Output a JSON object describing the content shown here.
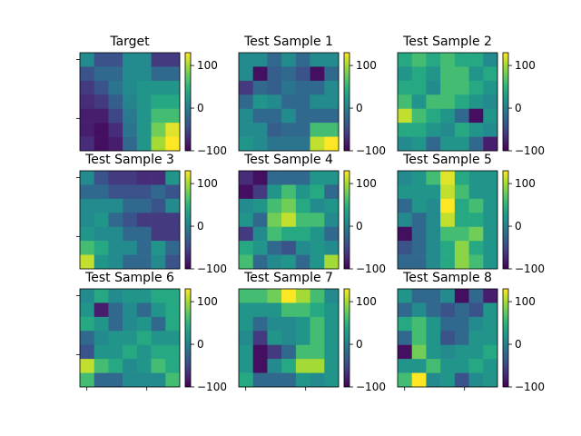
{
  "chart_data": {
    "type": "heatmap",
    "colormap": "viridis",
    "grid": false,
    "colorbar_ticks": [
      "100",
      "0",
      "−100"
    ],
    "colorbar_tick_values": [
      100,
      0,
      -100
    ],
    "vmin": -100,
    "vmax": 130,
    "panels": [
      {
        "title": "Target",
        "values": [
          [
            10,
            -40,
            -40,
            10,
            10,
            -60,
            -60
          ],
          [
            -40,
            -20,
            -20,
            10,
            10,
            -20,
            -20
          ],
          [
            -60,
            -40,
            -10,
            10,
            20,
            20,
            20
          ],
          [
            -70,
            -60,
            -30,
            5,
            20,
            40,
            40
          ],
          [
            -80,
            -80,
            -50,
            -5,
            20,
            60,
            60
          ],
          [
            -80,
            -90,
            -70,
            -10,
            20,
            80,
            120
          ],
          [
            -70,
            -90,
            -80,
            -20,
            20,
            100,
            130
          ]
        ]
      },
      {
        "title": "Test Sample 1",
        "values": [
          [
            10,
            10,
            -20,
            10,
            -20,
            10,
            10
          ],
          [
            10,
            -90,
            -30,
            -20,
            -40,
            -90,
            -20
          ],
          [
            -60,
            -20,
            -30,
            -10,
            -20,
            -20,
            10
          ],
          [
            -20,
            20,
            10,
            -20,
            -20,
            10,
            10
          ],
          [
            10,
            -20,
            -20,
            10,
            -20,
            -20,
            -20
          ],
          [
            10,
            10,
            -30,
            -20,
            -20,
            60,
            60
          ],
          [
            20,
            10,
            -10,
            -10,
            -10,
            110,
            130
          ]
        ]
      },
      {
        "title": "Test Sample 2",
        "values": [
          [
            40,
            60,
            40,
            60,
            40,
            40,
            10
          ],
          [
            20,
            40,
            20,
            60,
            60,
            20,
            40
          ],
          [
            40,
            40,
            10,
            60,
            60,
            40,
            20
          ],
          [
            60,
            20,
            60,
            60,
            40,
            20,
            10
          ],
          [
            110,
            60,
            40,
            20,
            -20,
            -90,
            20
          ],
          [
            40,
            40,
            20,
            10,
            40,
            20,
            10
          ],
          [
            10,
            20,
            -20,
            20,
            20,
            -20,
            -80
          ]
        ]
      },
      {
        "title": "Test Sample 3",
        "values": [
          [
            10,
            -40,
            -60,
            -60,
            -70,
            -70,
            20
          ],
          [
            -20,
            -20,
            -40,
            -40,
            -40,
            -20,
            -40
          ],
          [
            10,
            10,
            10,
            -20,
            -20,
            -40,
            10
          ],
          [
            10,
            20,
            -20,
            -40,
            -60,
            -60,
            -60
          ],
          [
            20,
            10,
            10,
            -20,
            -20,
            -60,
            -60
          ],
          [
            60,
            40,
            10,
            10,
            -20,
            20,
            -20
          ],
          [
            110,
            20,
            10,
            -20,
            -20,
            10,
            -40
          ]
        ]
      },
      {
        "title": "Test Sample 4",
        "values": [
          [
            -70,
            -90,
            -20,
            -20,
            -20,
            20,
            20
          ],
          [
            -90,
            -60,
            20,
            60,
            20,
            40,
            -20
          ],
          [
            10,
            20,
            60,
            80,
            40,
            10,
            20
          ],
          [
            20,
            -20,
            80,
            110,
            60,
            60,
            10
          ],
          [
            -60,
            10,
            60,
            40,
            40,
            20,
            -20
          ],
          [
            40,
            20,
            -20,
            -40,
            10,
            20,
            10
          ],
          [
            60,
            -20,
            10,
            20,
            -20,
            20,
            100
          ]
        ]
      },
      {
        "title": "Test Sample 5",
        "values": [
          [
            10,
            20,
            60,
            120,
            40,
            20,
            20
          ],
          [
            20,
            20,
            20,
            110,
            60,
            20,
            20
          ],
          [
            -20,
            20,
            10,
            130,
            40,
            60,
            20
          ],
          [
            10,
            -20,
            10,
            110,
            40,
            40,
            20
          ],
          [
            -90,
            -20,
            10,
            60,
            60,
            80,
            20
          ],
          [
            -40,
            -20,
            10,
            40,
            90,
            40,
            20
          ],
          [
            -20,
            -20,
            10,
            40,
            90,
            60,
            20
          ]
        ]
      },
      {
        "title": "Test Sample 6",
        "values": [
          [
            10,
            40,
            10,
            20,
            20,
            40,
            40
          ],
          [
            20,
            -80,
            -20,
            10,
            -20,
            20,
            40
          ],
          [
            40,
            20,
            -20,
            10,
            20,
            -20,
            40
          ],
          [
            -20,
            10,
            20,
            20,
            40,
            20,
            20
          ],
          [
            -40,
            20,
            20,
            40,
            20,
            40,
            40
          ],
          [
            110,
            60,
            40,
            10,
            20,
            60,
            40
          ],
          [
            60,
            -20,
            -20,
            10,
            10,
            10,
            60
          ]
        ]
      },
      {
        "title": "Test Sample 7",
        "values": [
          [
            60,
            60,
            80,
            130,
            100,
            60,
            10
          ],
          [
            20,
            20,
            20,
            60,
            60,
            40,
            20
          ],
          [
            20,
            -20,
            10,
            10,
            20,
            60,
            20
          ],
          [
            10,
            -60,
            20,
            10,
            20,
            60,
            20
          ],
          [
            20,
            -90,
            -60,
            -20,
            60,
            60,
            20
          ],
          [
            20,
            -90,
            10,
            40,
            100,
            100,
            20
          ],
          [
            40,
            -20,
            -20,
            -20,
            20,
            10,
            20
          ]
        ]
      },
      {
        "title": "Test Sample 8",
        "values": [
          [
            20,
            -20,
            -20,
            10,
            -90,
            -20,
            -80
          ],
          [
            -20,
            10,
            -20,
            -40,
            -20,
            -40,
            20
          ],
          [
            40,
            60,
            20,
            -20,
            -20,
            10,
            20
          ],
          [
            -20,
            60,
            20,
            -40,
            -20,
            20,
            20
          ],
          [
            -90,
            80,
            20,
            10,
            20,
            20,
            40
          ],
          [
            20,
            20,
            60,
            20,
            20,
            40,
            20
          ],
          [
            60,
            130,
            10,
            20,
            -40,
            10,
            20
          ]
        ]
      }
    ]
  }
}
